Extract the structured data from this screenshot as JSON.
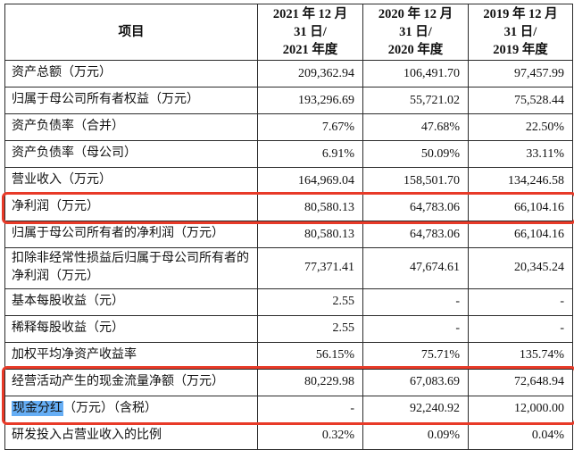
{
  "table": {
    "header": {
      "item_col": "项目",
      "period_cols": [
        {
          "name": "period-2021",
          "lines": [
            "2021 年 12 月",
            "31 日/",
            "2021 年度"
          ]
        },
        {
          "name": "period-2020",
          "lines": [
            "2020 年 12 月",
            "31 日/",
            "2020 年度"
          ]
        },
        {
          "name": "period-2019",
          "lines": [
            "2019 年 12 月",
            "31 日/",
            "2019 年度"
          ]
        }
      ]
    },
    "rows": [
      {
        "label": "资产总额（万元）",
        "values": [
          "209,362.94",
          "106,491.70",
          "97,457.99"
        ]
      },
      {
        "label": "归属于母公司所有者权益（万元）",
        "values": [
          "193,296.69",
          "55,721.02",
          "75,528.44"
        ]
      },
      {
        "label": "资产负债率（合并）",
        "values": [
          "7.67%",
          "47.68%",
          "22.50%"
        ]
      },
      {
        "label": "资产负债率（母公司）",
        "values": [
          "6.91%",
          "50.09%",
          "33.11%"
        ]
      },
      {
        "label": "营业收入（万元）",
        "values": [
          "164,969.04",
          "158,501.70",
          "134,246.58"
        ]
      },
      {
        "label": "净利润（万元）",
        "values": [
          "80,580.13",
          "64,783.06",
          "66,104.16"
        ],
        "box": "red-box-1"
      },
      {
        "label": "归属于母公司所有者的净利润（万元）",
        "values": [
          "80,580.13",
          "64,783.06",
          "66,104.16"
        ]
      },
      {
        "label": "扣除非经常性损益后归属于母公司所有者的净利润（万元）",
        "values": [
          "77,371.41",
          "47,674.61",
          "20,345.24"
        ]
      },
      {
        "label": "基本每股收益（元）",
        "values": [
          "2.55",
          "-",
          "-"
        ]
      },
      {
        "label": "稀释每股收益（元）",
        "values": [
          "2.55",
          "-",
          "-"
        ]
      },
      {
        "label": "加权平均净资产收益率",
        "values": [
          "56.15%",
          "75.71%",
          "135.74%"
        ]
      },
      {
        "label": "经营活动产生的现金流量净额（万元）",
        "values": [
          "80,229.98",
          "67,083.69",
          "72,648.94"
        ],
        "box": "red-box-2"
      },
      {
        "label_highlight": "现金分红",
        "label": "（万元）（含税）",
        "values": [
          "-",
          "92,240.92",
          "12,000.00"
        ],
        "box": "red-box-2"
      },
      {
        "label": "研发投入占营业收入的比例",
        "values": [
          "0.32%",
          "0.09%",
          "0.04%"
        ]
      }
    ],
    "colors": {
      "red_annotation_box": "#e83a28",
      "blue_text_highlight": "#66aef5",
      "border": "#2b2b2b"
    }
  }
}
